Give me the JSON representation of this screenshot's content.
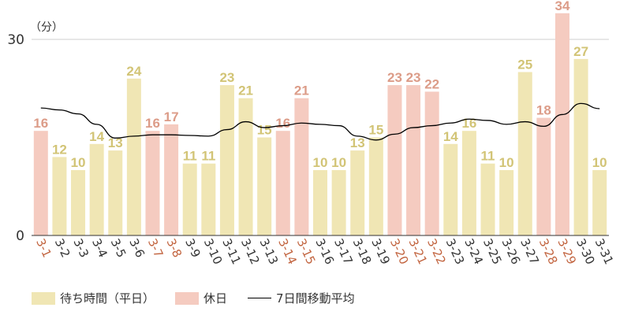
{
  "chart_data": {
    "type": "bar",
    "unit_label": "（分）",
    "y_ticks": [
      0,
      30
    ],
    "ylim": [
      0,
      34
    ],
    "grid": true,
    "legend_position": "bottom",
    "categories": [
      "3-1",
      "3-2",
      "3-3",
      "3-4",
      "3-5",
      "3-6",
      "3-7",
      "3-8",
      "3-9",
      "3-10",
      "3-11",
      "3-12",
      "3-13",
      "3-14",
      "3-15",
      "3-16",
      "3-17",
      "3-18",
      "3-19",
      "3-20",
      "3-21",
      "3-22",
      "3-23",
      "3-24",
      "3-25",
      "3-26",
      "3-27",
      "3-28",
      "3-29",
      "3-30",
      "3-31"
    ],
    "values": [
      16,
      12,
      10,
      14,
      13,
      24,
      16,
      17,
      11,
      11,
      23,
      21,
      15,
      16,
      21,
      10,
      10,
      13,
      15,
      23,
      23,
      22,
      14,
      16,
      11,
      10,
      25,
      18,
      34,
      27,
      10
    ],
    "holiday_flags": [
      1,
      0,
      0,
      0,
      0,
      0,
      1,
      1,
      0,
      0,
      0,
      0,
      0,
      1,
      1,
      0,
      0,
      0,
      0,
      1,
      1,
      1,
      0,
      0,
      0,
      0,
      0,
      1,
      1,
      0,
      0
    ],
    "moving_average": [
      19.5,
      19.2,
      18.6,
      17.0,
      14.9,
      15.2,
      15.4,
      15.4,
      15.3,
      15.2,
      16.2,
      17.4,
      16.5,
      16.8,
      17.2,
      17.0,
      16.8,
      15.2,
      14.6,
      15.5,
      16.5,
      16.8,
      17.2,
      17.8,
      17.6,
      17.0,
      17.4,
      16.7,
      18.5,
      20.2,
      19.4
    ],
    "series": [
      {
        "name": "待ち時間（平日）",
        "color": "#f0e6b4"
      },
      {
        "name": "休日",
        "color": "#f5cbc0"
      },
      {
        "name": "7日間移動平均",
        "color": "#000000"
      }
    ],
    "colors": {
      "weekday_bar": "#f0e6b4",
      "holiday_bar": "#f5cbc0",
      "weekday_label": "#d2c476",
      "holiday_label": "#dc9c88",
      "holiday_tick": "#c2643f",
      "weekday_tick": "#333333",
      "grid": "#cfcfcf",
      "axis": "#333333"
    }
  }
}
